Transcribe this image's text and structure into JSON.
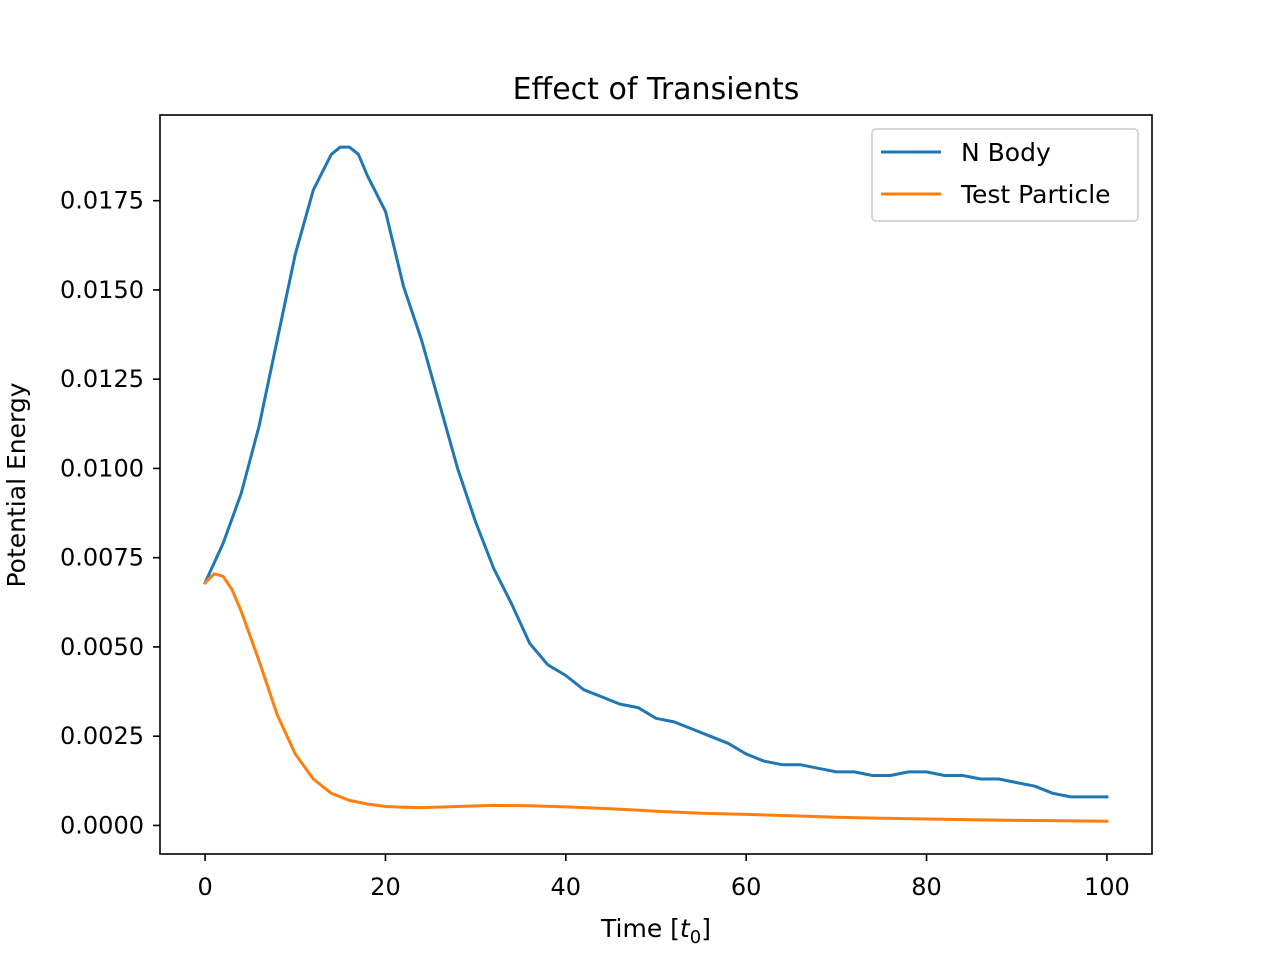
{
  "chart_data": {
    "type": "line",
    "title": "Effect of Transients",
    "xlabel_main": "Time [",
    "xlabel_sym": "t",
    "xlabel_sub": "0",
    "xlabel_close": "]",
    "ylabel": "Potential Energy",
    "xlim": [
      -5,
      105
    ],
    "ylim": [
      -0.0008,
      0.0199
    ],
    "xticks": [
      0,
      20,
      40,
      60,
      80,
      100
    ],
    "xtick_labels": [
      "0",
      "20",
      "40",
      "60",
      "80",
      "100"
    ],
    "yticks": [
      0.0,
      0.0025,
      0.005,
      0.0075,
      0.01,
      0.0125,
      0.015,
      0.0175
    ],
    "ytick_labels": [
      "0.0000",
      "0.0025",
      "0.0050",
      "0.0075",
      "0.0100",
      "0.0125",
      "0.0150",
      "0.0175"
    ],
    "grid": false,
    "legend_position": "top-right",
    "series": [
      {
        "name": "N Body",
        "color": "#1f77b4",
        "x": [
          0,
          2,
          4,
          6,
          8,
          10,
          12,
          14,
          15,
          16,
          17,
          18,
          20,
          22,
          24,
          26,
          28,
          30,
          32,
          34,
          36,
          38,
          40,
          42,
          44,
          46,
          48,
          50,
          52,
          54,
          56,
          58,
          60,
          62,
          64,
          66,
          68,
          70,
          72,
          74,
          76,
          78,
          80,
          82,
          84,
          86,
          88,
          90,
          92,
          94,
          96,
          98,
          100
        ],
        "y": [
          0.0068,
          0.0079,
          0.0093,
          0.0112,
          0.0136,
          0.016,
          0.0178,
          0.0188,
          0.019,
          0.019,
          0.0188,
          0.0182,
          0.0172,
          0.0151,
          0.0136,
          0.0118,
          0.01,
          0.0085,
          0.0072,
          0.0062,
          0.0051,
          0.0045,
          0.0042,
          0.0038,
          0.0036,
          0.0034,
          0.0033,
          0.003,
          0.0029,
          0.0027,
          0.0025,
          0.0023,
          0.002,
          0.0018,
          0.0017,
          0.0017,
          0.0016,
          0.0015,
          0.0015,
          0.0014,
          0.0014,
          0.0015,
          0.0015,
          0.0014,
          0.0014,
          0.0013,
          0.0013,
          0.0012,
          0.0011,
          0.0009,
          0.0008,
          0.0008,
          0.0008
        ]
      },
      {
        "name": "Test Particle",
        "color": "#ff7f0e",
        "x": [
          0,
          1,
          2,
          3,
          4,
          6,
          8,
          10,
          12,
          14,
          16,
          18,
          20,
          22,
          24,
          28,
          32,
          36,
          40,
          45,
          50,
          55,
          60,
          65,
          70,
          75,
          80,
          85,
          90,
          95,
          100
        ],
        "y": [
          0.0068,
          0.00705,
          0.00698,
          0.0066,
          0.006,
          0.0046,
          0.0031,
          0.002,
          0.0013,
          0.0009,
          0.0007,
          0.0006,
          0.00053,
          0.00051,
          0.0005,
          0.00053,
          0.00056,
          0.00055,
          0.00052,
          0.00047,
          0.0004,
          0.00034,
          0.00031,
          0.00027,
          0.00023,
          0.0002,
          0.00018,
          0.00016,
          0.00014,
          0.00013,
          0.00012
        ]
      }
    ]
  }
}
